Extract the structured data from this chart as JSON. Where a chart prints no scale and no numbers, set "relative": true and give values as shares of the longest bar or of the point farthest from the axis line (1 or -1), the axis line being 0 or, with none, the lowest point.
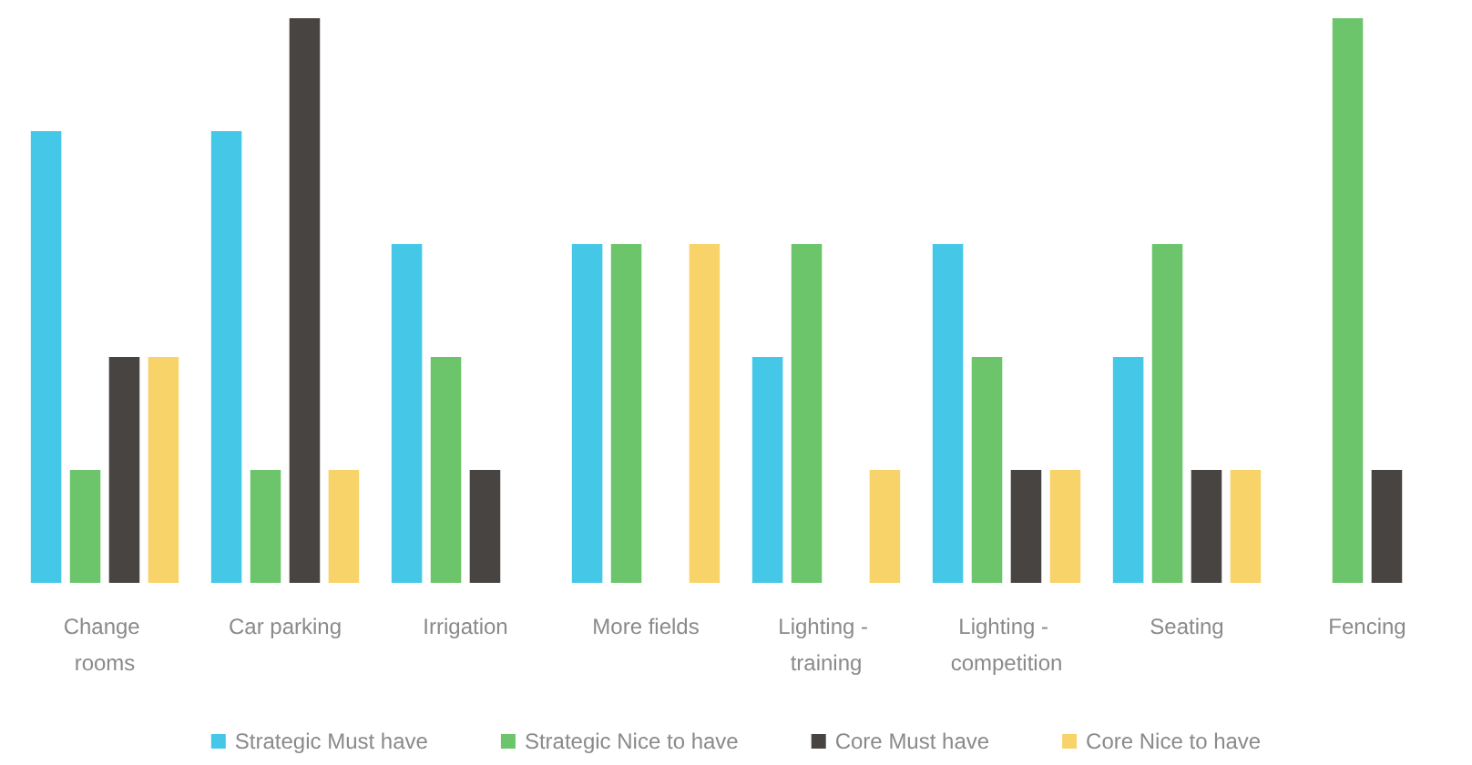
{
  "chart_data": {
    "type": "bar",
    "relative": true,
    "legend": "bottom",
    "categories": [
      "Change rooms",
      "Car parking",
      "Irrigation",
      "More fields",
      "Lighting - training",
      "Lighting - competition",
      "Seating",
      "Fencing"
    ],
    "series": [
      {
        "name": "Strategic Must have",
        "color": "#45c8e8",
        "values": [
          0.8,
          0.8,
          0.6,
          0.6,
          0.4,
          0.6,
          0.4,
          0
        ]
      },
      {
        "name": "Strategic Nice to have",
        "color": "#6cc56a",
        "values": [
          0.2,
          0.2,
          0.4,
          0.6,
          0.6,
          0.4,
          0.6,
          1
        ]
      },
      {
        "name": "Core Must have",
        "color": "#484442",
        "values": [
          0.4,
          1,
          0.2,
          0,
          0,
          0.2,
          0.2,
          0.2
        ]
      },
      {
        "name": "Core Nice to have",
        "color": "#f8d36a",
        "values": [
          0.4,
          0.2,
          0,
          0.6,
          0.2,
          0.2,
          0.2,
          0
        ]
      }
    ]
  }
}
